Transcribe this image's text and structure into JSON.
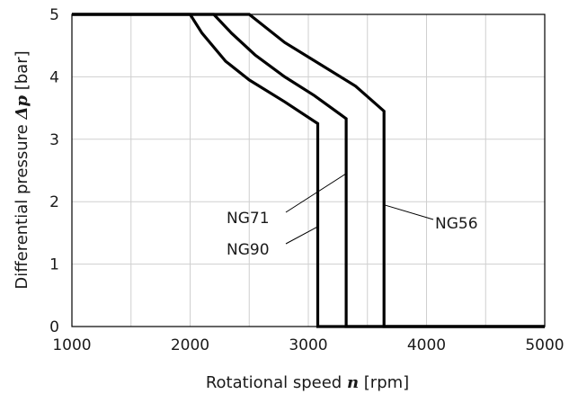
{
  "chart_data": {
    "type": "line",
    "title": "",
    "xlabel": {
      "prefix": "Rotational speed ",
      "var": "n",
      "suffix": " [rpm]"
    },
    "ylabel": {
      "prefix": "Differential pressure ",
      "var": "Δp",
      "suffix": " [bar]"
    },
    "xlim": [
      1000,
      5000
    ],
    "ylim": [
      0,
      5
    ],
    "x_ticks": [
      1000,
      2000,
      3000,
      4000,
      5000
    ],
    "y_ticks": [
      0,
      1,
      2,
      3,
      4,
      5
    ],
    "x_minor_step": 500,
    "grid": true,
    "series": [
      {
        "name": "NG90",
        "points": [
          [
            1000,
            5
          ],
          [
            2000,
            5
          ],
          [
            2100,
            4.7
          ],
          [
            2300,
            4.25
          ],
          [
            2500,
            3.95
          ],
          [
            2800,
            3.6
          ],
          [
            3080,
            3.25
          ],
          [
            3080,
            0
          ],
          [
            5000,
            0
          ]
        ]
      },
      {
        "name": "NG71",
        "points": [
          [
            1000,
            5
          ],
          [
            2200,
            5
          ],
          [
            2350,
            4.7
          ],
          [
            2550,
            4.35
          ],
          [
            2800,
            4.0
          ],
          [
            3050,
            3.7
          ],
          [
            3320,
            3.33
          ],
          [
            3320,
            0
          ],
          [
            5000,
            0
          ]
        ]
      },
      {
        "name": "NG56",
        "points": [
          [
            1000,
            5
          ],
          [
            2500,
            5
          ],
          [
            2600,
            4.85
          ],
          [
            2800,
            4.55
          ],
          [
            3100,
            4.2
          ],
          [
            3400,
            3.85
          ],
          [
            3640,
            3.45
          ],
          [
            3640,
            0
          ],
          [
            5000,
            0
          ]
        ]
      }
    ],
    "annotations": [
      {
        "series": "NG71",
        "text": "NG71",
        "anchor": [
          3320,
          2.45
        ]
      },
      {
        "series": "NG90",
        "text": "NG90",
        "anchor": [
          3080,
          1.6
        ]
      },
      {
        "series": "NG56",
        "text": "NG56",
        "anchor": [
          3640,
          1.95
        ]
      }
    ]
  }
}
